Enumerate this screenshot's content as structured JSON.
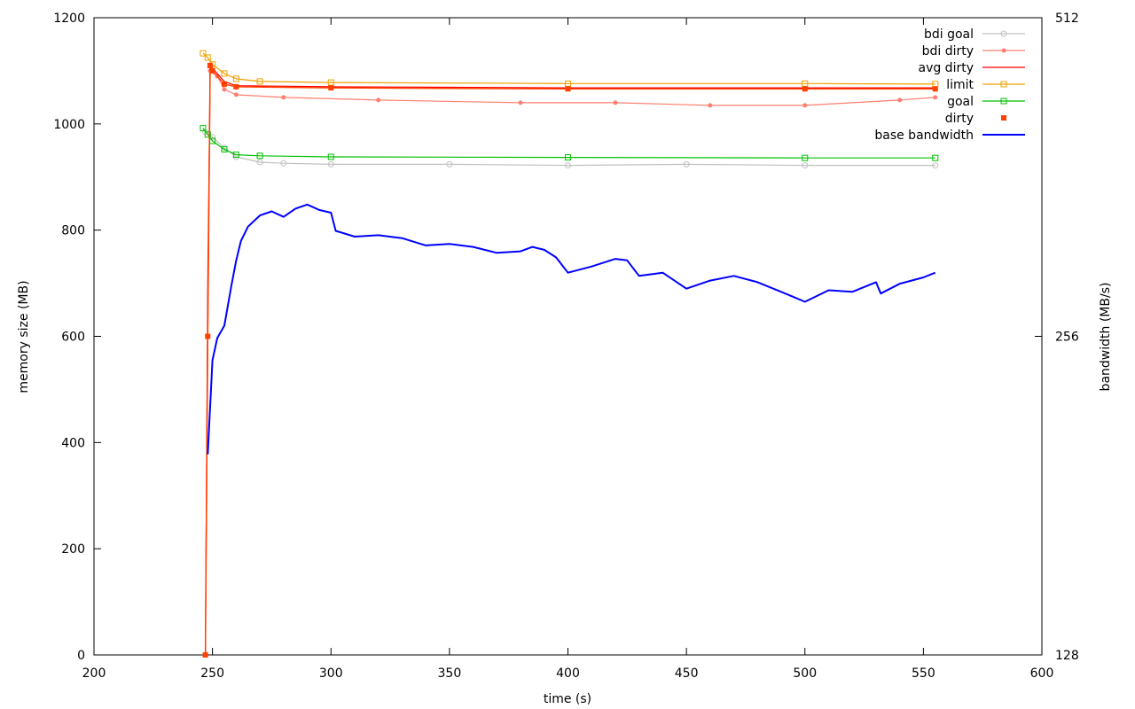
{
  "chart_data": {
    "type": "line",
    "xlabel": "time (s)",
    "ylabel": "memory size (MB)",
    "y2label": "bandwidth (MB/s)",
    "xlim": [
      200,
      600
    ],
    "ylim": [
      0,
      1200
    ],
    "y2lim": [
      128,
      512
    ],
    "y2scale": "log2",
    "xticks": [
      200,
      250,
      300,
      350,
      400,
      450,
      500,
      550,
      600
    ],
    "yticks": [
      0,
      200,
      400,
      600,
      800,
      1000,
      1200
    ],
    "y2ticks": [
      128,
      256,
      512
    ],
    "grid": false,
    "legend_position": "top-right",
    "series": [
      {
        "name": "bdi goal",
        "axis": "y",
        "color": "#c0c0c0",
        "marker": "circle-open",
        "x": [
          247,
          250,
          255,
          260,
          270,
          280,
          300,
          350,
          400,
          450,
          500,
          555
        ],
        "values": [
          985,
          975,
          955,
          938,
          928,
          926,
          924,
          924,
          922,
          924,
          922,
          922
        ]
      },
      {
        "name": "bdi dirty",
        "axis": "y",
        "color": "#ff7f6f",
        "marker": "dot",
        "x": [
          247,
          248,
          249,
          252,
          255,
          260,
          280,
          320,
          380,
          420,
          460,
          500,
          540,
          555
        ],
        "values": [
          0,
          600,
          1100,
          1090,
          1065,
          1055,
          1050,
          1045,
          1040,
          1040,
          1035,
          1035,
          1045,
          1050
        ]
      },
      {
        "name": "avg dirty",
        "axis": "y",
        "color": "#ff0000",
        "marker": "none",
        "x": [
          247,
          248,
          249,
          250,
          255,
          260,
          300,
          400,
          500,
          555
        ],
        "values": [
          0,
          700,
          1100,
          1105,
          1080,
          1072,
          1070,
          1068,
          1068,
          1068
        ]
      },
      {
        "name": "limit",
        "axis": "y",
        "color": "#f0a000",
        "marker": "square-open",
        "x": [
          246,
          248,
          250,
          255,
          260,
          270,
          300,
          400,
          500,
          555
        ],
        "values": [
          1133,
          1125,
          1112,
          1095,
          1085,
          1080,
          1078,
          1076,
          1076,
          1075
        ]
      },
      {
        "name": "goal",
        "axis": "y",
        "color": "#00c000",
        "marker": "square-open",
        "x": [
          246,
          248,
          250,
          255,
          260,
          270,
          300,
          400,
          500,
          555
        ],
        "values": [
          992,
          980,
          968,
          952,
          942,
          940,
          938,
          937,
          936,
          936
        ]
      },
      {
        "name": "dirty",
        "axis": "y",
        "color": "#ff4000",
        "marker": "square-filled",
        "x": [
          247,
          248,
          249,
          250,
          255,
          260,
          300,
          400,
          500,
          555
        ],
        "values": [
          0,
          600,
          1110,
          1100,
          1075,
          1070,
          1068,
          1066,
          1066,
          1066
        ]
      },
      {
        "name": "base bandwidth",
        "axis": "y2",
        "color": "#0000ff",
        "marker": "none",
        "x": [
          248,
          250,
          252,
          255,
          258,
          260,
          262,
          265,
          270,
          275,
          280,
          285,
          290,
          295,
          300,
          302,
          310,
          320,
          330,
          340,
          350,
          360,
          370,
          380,
          385,
          390,
          395,
          400,
          410,
          420,
          425,
          430,
          440,
          450,
          460,
          470,
          480,
          490,
          500,
          510,
          520,
          530,
          532,
          540,
          550,
          555
        ],
        "values": [
          198,
          243,
          255,
          262,
          286,
          302,
          315,
          325,
          333,
          336,
          332,
          338,
          341,
          337,
          335,
          322,
          318,
          319,
          317,
          312,
          313,
          311,
          307,
          308,
          311,
          309,
          304,
          294,
          298,
          303,
          302,
          292,
          294,
          284,
          289,
          292,
          288,
          282,
          276,
          283,
          282,
          288,
          281,
          287,
          291,
          294
        ]
      }
    ]
  }
}
